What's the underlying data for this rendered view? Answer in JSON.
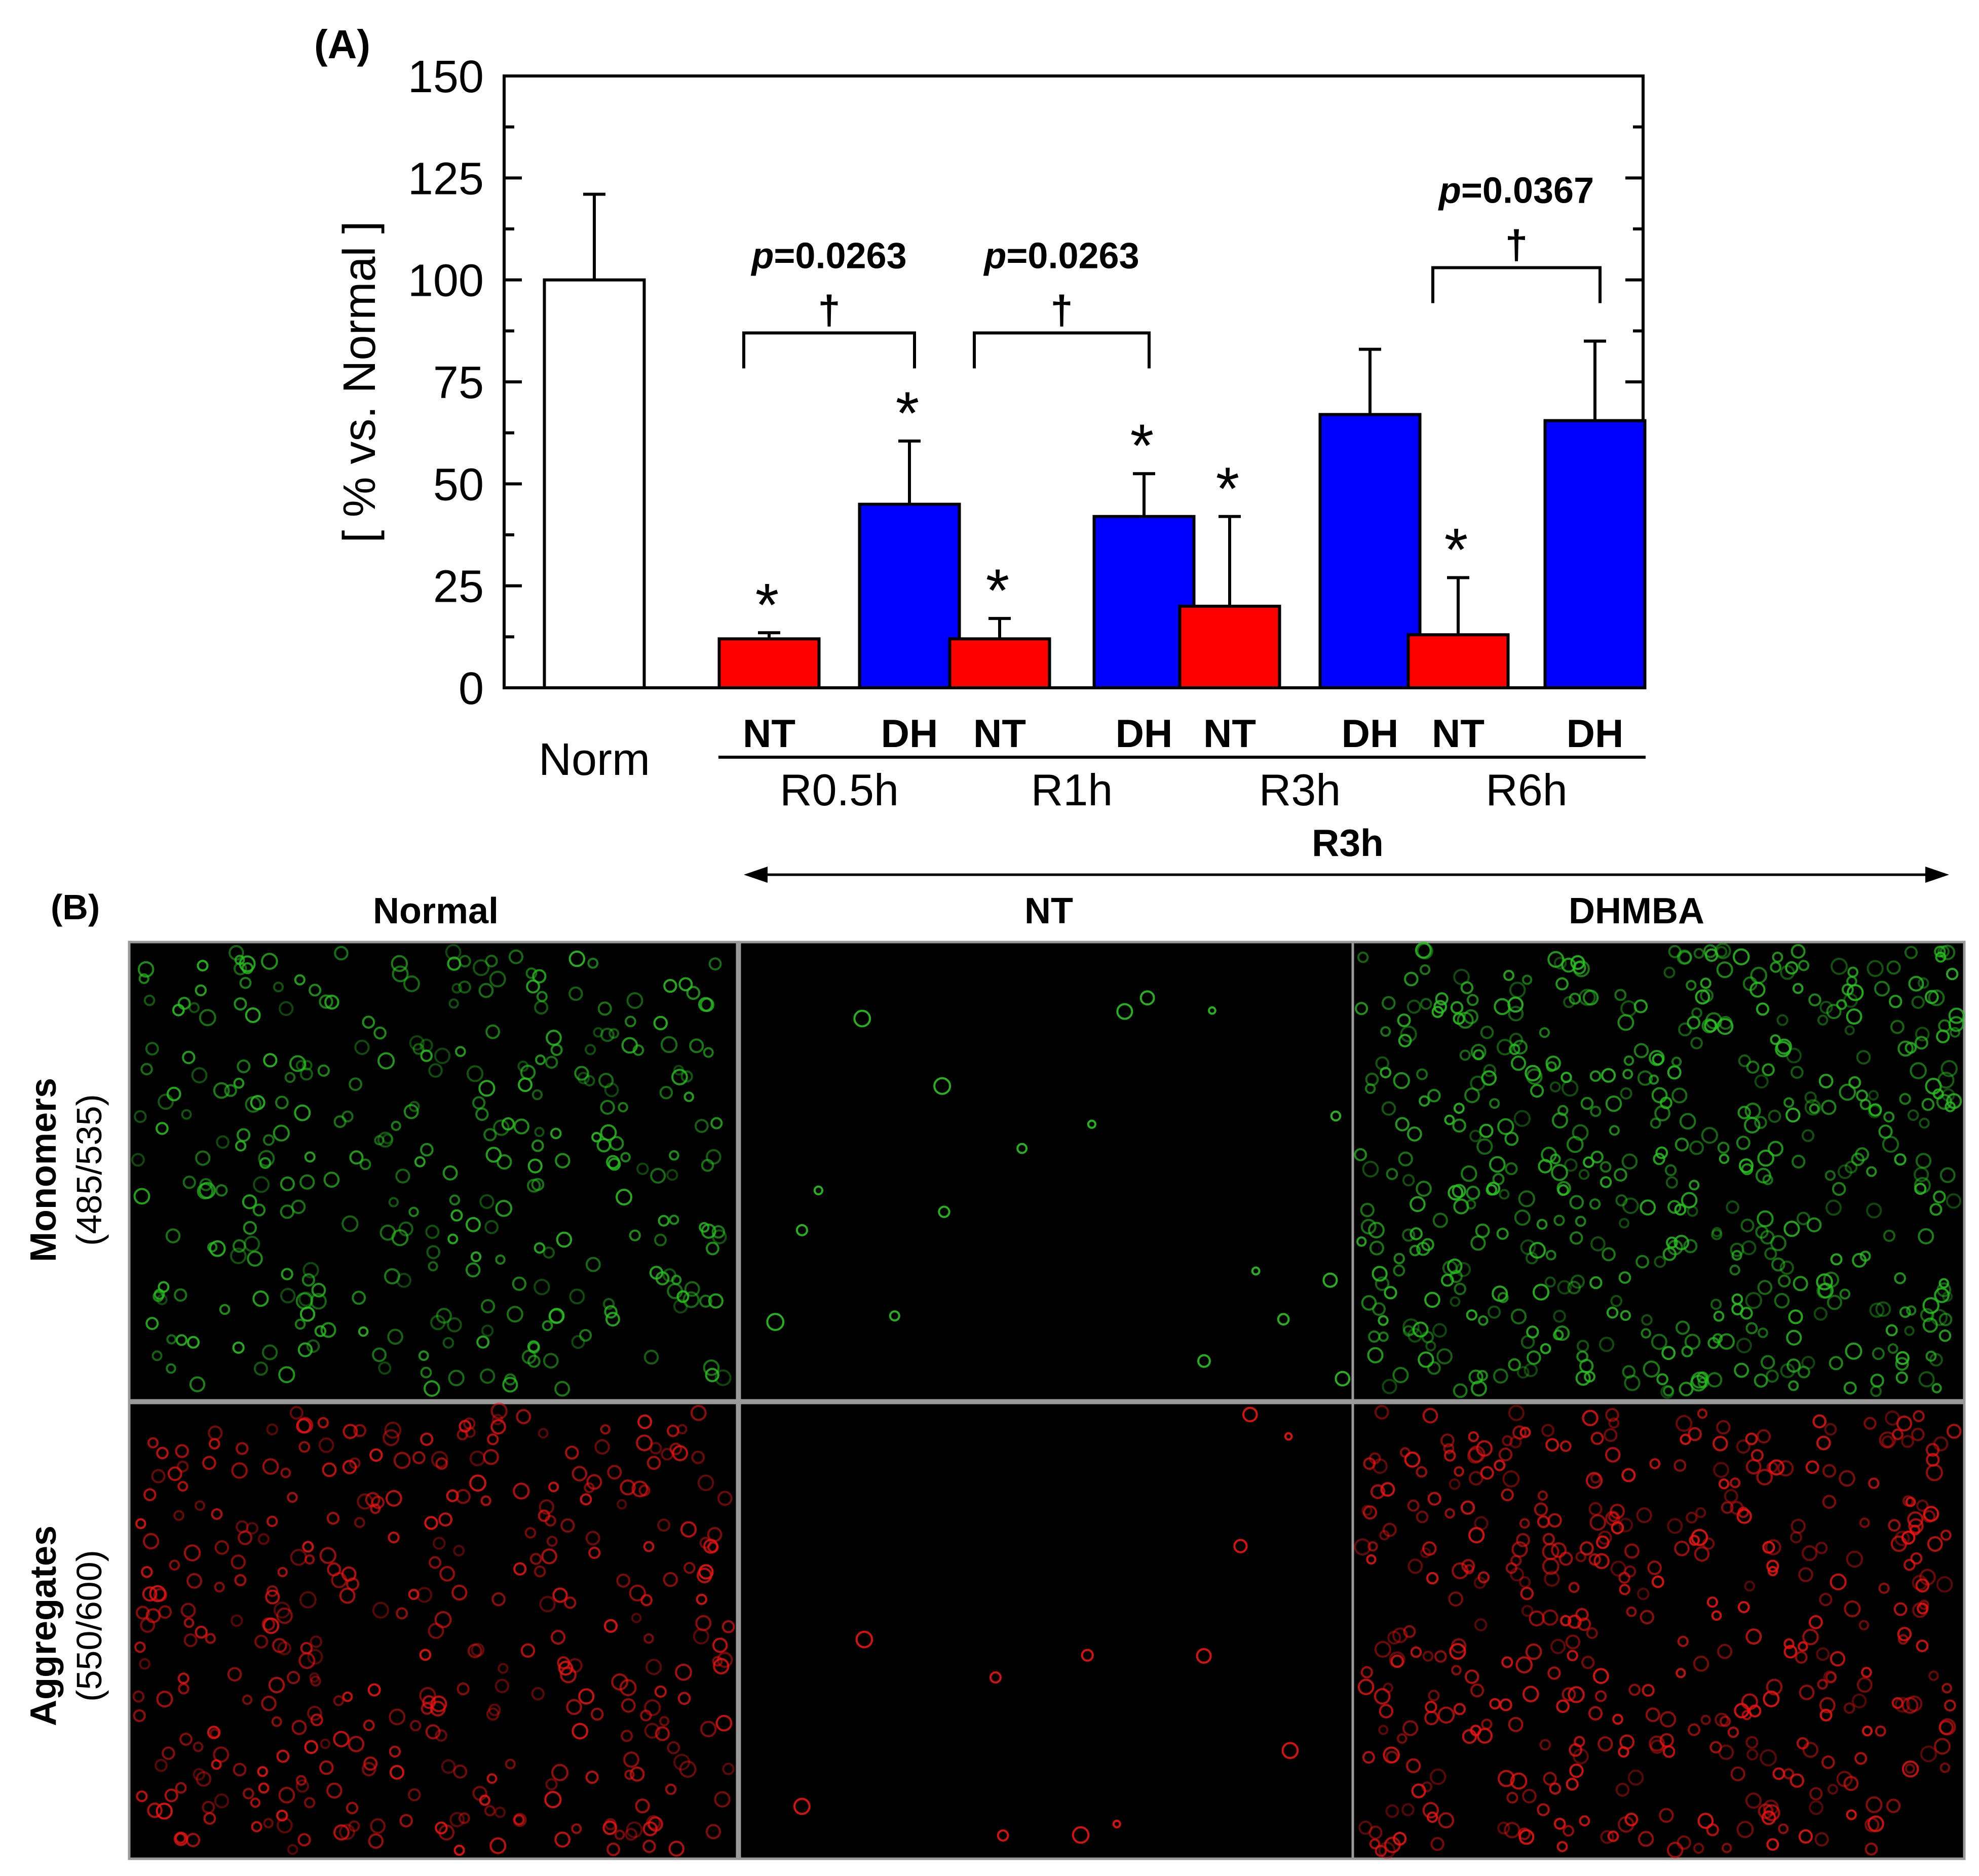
{
  "panel_a": {
    "label": "(A)",
    "chart_data": {
      "type": "bar",
      "ylabel": "[ % vs. Normal ]",
      "ylim": [
        0,
        150
      ],
      "yticks": [
        "0",
        "25",
        "50",
        "75",
        "100",
        "125",
        "150"
      ],
      "colors": {
        "norm": "#ffffff",
        "NT": "#ff0000",
        "DH": "#0000ff"
      },
      "bars": [
        {
          "group": "Norm",
          "cond": "Norm",
          "value": 100,
          "err": 121,
          "star": false
        },
        {
          "group": "R0.5h",
          "cond": "NT",
          "value": 12,
          "err": 13.5,
          "star": true
        },
        {
          "group": "R0.5h",
          "cond": "DH",
          "value": 45,
          "err": 60.5,
          "star": true
        },
        {
          "group": "R1h",
          "cond": "NT",
          "value": 12,
          "err": 17,
          "star": true
        },
        {
          "group": "R1h",
          "cond": "DH",
          "value": 42,
          "err": 52.5,
          "star": true
        },
        {
          "group": "R3h",
          "cond": "NT",
          "value": 20,
          "err": 42,
          "star": true
        },
        {
          "group": "R3h",
          "cond": "DH",
          "value": 67,
          "err": 83,
          "star": false
        },
        {
          "group": "R6h",
          "cond": "NT",
          "value": 13,
          "err": 27,
          "star": true
        },
        {
          "group": "R6h",
          "cond": "DH",
          "value": 65.5,
          "err": 85,
          "star": false
        }
      ],
      "norm_label": "Norm",
      "groups": [
        {
          "name": "R0.5h",
          "nt": "NT",
          "dh": "DH"
        },
        {
          "name": "R1h",
          "nt": "NT",
          "dh": "DH"
        },
        {
          "name": "R3h",
          "nt": "NT",
          "dh": "DH"
        },
        {
          "name": "R6h",
          "nt": "NT",
          "dh": "DH"
        }
      ],
      "annotations": [
        {
          "group": "R0.5h",
          "p_prefix": "p",
          "p_value": "=0.0263",
          "dagger": "†",
          "bracket_level": 87
        },
        {
          "group": "R1h",
          "p_prefix": "p",
          "p_value": "=0.0263",
          "dagger": "†",
          "bracket_level": 87
        },
        {
          "group": "R6h",
          "p_prefix": "p",
          "p_value": "=0.0367",
          "dagger": "†",
          "bracket_level": 103
        }
      ],
      "significance_symbol": "*"
    }
  },
  "panel_b": {
    "label": "(B)",
    "timepoint": "R3h",
    "columns": [
      "Normal",
      "NT",
      "DHMBA"
    ],
    "rows": [
      {
        "title": "Monomers",
        "subtitle": "(485/535)"
      },
      {
        "title": "Aggregates",
        "subtitle": "(550/600)"
      }
    ],
    "colors": {
      "monomer": "#27c41f",
      "aggregate": "#f01212"
    }
  }
}
